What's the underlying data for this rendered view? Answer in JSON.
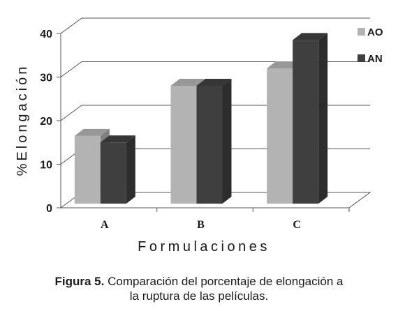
{
  "chart_data": {
    "type": "bar",
    "categories": [
      "A",
      "B",
      "C"
    ],
    "series": [
      {
        "name": "AO",
        "values": [
          16.5,
          28,
          32
        ]
      },
      {
        "name": "AN",
        "values": [
          15,
          28,
          38.5
        ]
      }
    ],
    "xlabel": "Formulaciones",
    "ylabel": "%Elongación",
    "ylim": [
      0,
      40
    ],
    "yticks": [
      0,
      10,
      20,
      30,
      40
    ],
    "grid": true,
    "legend_position": "right",
    "style": "3d",
    "colors": {
      "AO": "#b3b3b3",
      "AN": "#3f3f3f"
    }
  },
  "caption": {
    "label": "Figura 5.",
    "line1": "Comparación del porcentaje de elongación a",
    "line2": "la ruptura de las películas."
  }
}
